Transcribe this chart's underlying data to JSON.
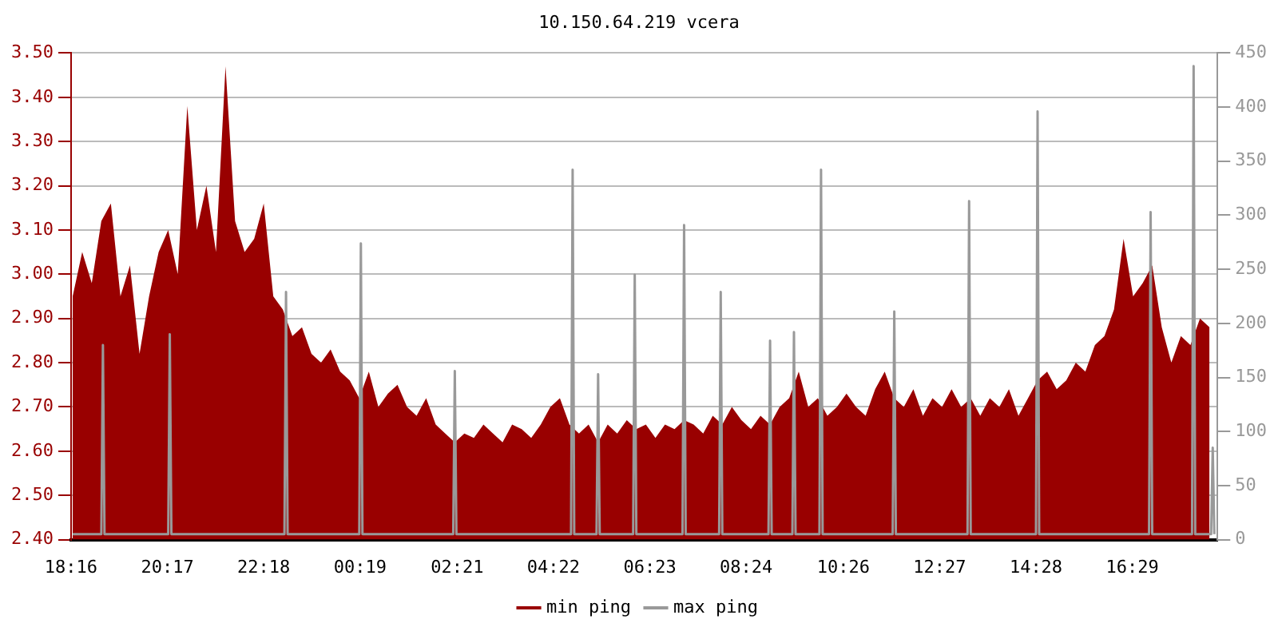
{
  "chart_data": {
    "type": "area",
    "title": "10.150.64.219 vcera",
    "xlim": [
      "--01-01T18:16",
      "--01-02T18:16"
    ],
    "xticks": [
      {
        "value": "--01-01T18:16",
        "label": "18:16"
      },
      {
        "value": "--01-01T20:17",
        "label": "20:17"
      },
      {
        "value": "--01-01T22:18",
        "label": "22:18"
      },
      {
        "value": "--01-02T00:19",
        "label": "00:19"
      },
      {
        "value": "--01-02T02:21",
        "label": "02:21"
      },
      {
        "value": "--01-02T04:22",
        "label": "04:22"
      },
      {
        "value": "--01-02T06:23",
        "label": "06:23"
      },
      {
        "value": "--01-02T08:24",
        "label": "08:24"
      },
      {
        "value": "--01-02T10:26",
        "label": "10:26"
      },
      {
        "value": "--01-02T12:27",
        "label": "12:27"
      },
      {
        "value": "--01-02T14:28",
        "label": "14:28"
      },
      {
        "value": "--01-02T16:29",
        "label": "16:29"
      }
    ],
    "ylim": [
      2.4,
      3.5
    ],
    "yticks": [
      {
        "value": 2.4,
        "label": "2.40"
      },
      {
        "value": 2.5,
        "label": "2.50"
      },
      {
        "value": 2.6,
        "label": "2.60"
      },
      {
        "value": 2.7,
        "label": "2.70"
      },
      {
        "value": 2.8,
        "label": "2.80"
      },
      {
        "value": 2.9,
        "label": "2.90"
      },
      {
        "value": 3.0,
        "label": "3.00"
      },
      {
        "value": 3.1,
        "label": "3.10"
      },
      {
        "value": 3.2,
        "label": "3.20"
      },
      {
        "value": 3.3,
        "label": "3.30"
      },
      {
        "value": 3.4,
        "label": "3.40"
      },
      {
        "value": 3.5,
        "label": "3.50"
      }
    ],
    "y2lim": [
      0,
      450
    ],
    "y2ticks": [
      0,
      50,
      100,
      150,
      200,
      250,
      300,
      350,
      400,
      450
    ],
    "grid": "y",
    "legend": "bottom",
    "marker": "none",
    "series": [
      {
        "name": "min ping",
        "color": "#990000",
        "x": [
          "--01-01T18:18",
          "--01-01T18:30",
          "--01-01T18:42",
          "--01-01T18:54",
          "--01-01T19:06",
          "--01-01T19:18",
          "--01-01T19:30",
          "--01-01T19:42",
          "--01-01T19:54",
          "--01-01T20:06",
          "--01-01T20:18",
          "--01-01T20:30",
          "--01-01T20:42",
          "--01-01T20:54",
          "--01-01T21:06",
          "--01-01T21:18",
          "--01-01T21:30",
          "--01-01T21:42",
          "--01-01T21:54",
          "--01-01T22:06",
          "--01-01T22:18",
          "--01-01T22:30",
          "--01-01T22:42",
          "--01-01T22:54",
          "--01-01T23:06",
          "--01-01T23:18",
          "--01-01T23:30",
          "--01-01T23:42",
          "--01-01T23:54",
          "--01-02T00:06",
          "--01-02T00:18",
          "--01-02T00:30",
          "--01-02T00:42",
          "--01-02T00:54",
          "--01-02T01:06",
          "--01-02T01:18",
          "--01-02T01:30",
          "--01-02T01:42",
          "--01-02T01:54",
          "--01-02T02:06",
          "--01-02T02:18",
          "--01-02T02:30",
          "--01-02T02:42",
          "--01-02T02:54",
          "--01-02T03:06",
          "--01-02T03:18",
          "--01-02T03:30",
          "--01-02T03:42",
          "--01-02T03:54",
          "--01-02T04:06",
          "--01-02T04:18",
          "--01-02T04:30",
          "--01-02T04:42",
          "--01-02T04:54",
          "--01-02T05:06",
          "--01-02T05:18",
          "--01-02T05:30",
          "--01-02T05:42",
          "--01-02T05:54",
          "--01-02T06:06",
          "--01-02T06:18",
          "--01-02T06:30",
          "--01-02T06:42",
          "--01-02T06:54",
          "--01-02T07:06",
          "--01-02T07:18",
          "--01-02T07:30",
          "--01-02T07:42",
          "--01-02T07:54",
          "--01-02T08:06",
          "--01-02T08:18",
          "--01-02T08:30",
          "--01-02T08:42",
          "--01-02T08:54",
          "--01-02T09:06",
          "--01-02T09:18",
          "--01-02T09:30",
          "--01-02T09:42",
          "--01-02T09:54",
          "--01-02T10:06",
          "--01-02T10:18",
          "--01-02T10:30",
          "--01-02T10:42",
          "--01-02T10:54",
          "--01-02T11:06",
          "--01-02T11:18",
          "--01-02T11:30",
          "--01-02T11:42",
          "--01-02T11:54",
          "--01-02T12:06",
          "--01-02T12:18",
          "--01-02T12:30",
          "--01-02T12:42",
          "--01-02T12:54",
          "--01-02T13:06",
          "--01-02T13:18",
          "--01-02T13:30",
          "--01-02T13:42",
          "--01-02T13:54",
          "--01-02T14:06",
          "--01-02T14:18",
          "--01-02T14:30",
          "--01-02T14:42",
          "--01-02T14:54",
          "--01-02T15:06",
          "--01-02T15:18",
          "--01-02T15:30",
          "--01-02T15:42",
          "--01-02T15:54",
          "--01-02T16:06",
          "--01-02T16:18",
          "--01-02T16:30",
          "--01-02T16:42",
          "--01-02T16:54",
          "--01-02T17:06",
          "--01-02T17:18",
          "--01-02T17:30",
          "--01-02T17:42",
          "--01-02T17:54",
          "--01-02T18:06"
        ],
        "values": [
          2.95,
          3.05,
          2.98,
          3.12,
          3.16,
          2.95,
          3.02,
          2.82,
          2.95,
          3.05,
          3.1,
          3.0,
          3.38,
          3.1,
          3.2,
          3.05,
          3.47,
          3.12,
          3.05,
          3.08,
          3.16,
          2.95,
          2.92,
          2.86,
          2.88,
          2.82,
          2.8,
          2.83,
          2.78,
          2.76,
          2.72,
          2.78,
          2.7,
          2.73,
          2.75,
          2.7,
          2.68,
          2.72,
          2.66,
          2.64,
          2.62,
          2.64,
          2.63,
          2.66,
          2.64,
          2.62,
          2.66,
          2.65,
          2.63,
          2.66,
          2.7,
          2.72,
          2.66,
          2.64,
          2.66,
          2.62,
          2.66,
          2.64,
          2.67,
          2.65,
          2.66,
          2.63,
          2.66,
          2.65,
          2.67,
          2.66,
          2.64,
          2.68,
          2.66,
          2.7,
          2.67,
          2.65,
          2.68,
          2.66,
          2.7,
          2.72,
          2.78,
          2.7,
          2.72,
          2.68,
          2.7,
          2.73,
          2.7,
          2.68,
          2.74,
          2.78,
          2.72,
          2.7,
          2.74,
          2.68,
          2.72,
          2.7,
          2.74,
          2.7,
          2.72,
          2.68,
          2.72,
          2.7,
          2.74,
          2.68,
          2.72,
          2.76,
          2.78,
          2.74,
          2.76,
          2.8,
          2.78,
          2.84,
          2.86,
          2.92,
          3.08,
          2.95,
          2.98,
          3.02,
          2.88,
          2.8,
          2.86,
          2.84,
          2.9,
          2.88
        ]
      },
      {
        "name": "max ping",
        "type": "line",
        "axis": "y2",
        "color": "#999999",
        "x": [
          "--01-01T18:18",
          "--01-01T18:54",
          "--01-01T18:56",
          "--01-01T18:58",
          "--01-01T19:30",
          "--01-01T20:18",
          "--01-01T20:20",
          "--01-01T20:22",
          "--01-01T21:30",
          "--01-01T22:44",
          "--01-01T22:46",
          "--01-01T22:48",
          "--01-01T23:30",
          "--01-02T00:18",
          "--01-02T00:20",
          "--01-02T00:22",
          "--01-02T01:30",
          "--01-02T02:16",
          "--01-02T02:18",
          "--01-02T02:20",
          "--01-02T03:30",
          "--01-02T04:44",
          "--01-02T04:46",
          "--01-02T04:48",
          "--01-02T05:16",
          "--01-02T05:18",
          "--01-02T05:20",
          "--01-02T06:02",
          "--01-02T06:04",
          "--01-02T06:06",
          "--01-02T07:04",
          "--01-02T07:06",
          "--01-02T07:08",
          "--01-02T07:50",
          "--01-02T07:52",
          "--01-02T07:54",
          "--01-02T08:52",
          "--01-02T08:54",
          "--01-02T08:56",
          "--01-02T09:22",
          "--01-02T09:24",
          "--01-02T09:26",
          "--01-02T09:56",
          "--01-02T09:58",
          "--01-02T10:00",
          "--01-02T11:28",
          "--01-02T11:30",
          "--01-02T11:32",
          "--01-02T13:02",
          "--01-02T13:04",
          "--01-02T13:06",
          "--01-02T14:28",
          "--01-02T14:30",
          "--01-02T14:32",
          "--01-02T16:50",
          "--01-02T16:52",
          "--01-02T16:54",
          "--01-02T17:44",
          "--01-02T17:46",
          "--01-02T17:48",
          "--01-02T18:08",
          "--01-02T18:10",
          "--01-02T18:12"
        ],
        "values": [
          5,
          5,
          180,
          5,
          5,
          5,
          190,
          5,
          5,
          5,
          229,
          5,
          5,
          5,
          274,
          5,
          5,
          5,
          156,
          5,
          5,
          5,
          342,
          5,
          5,
          153,
          5,
          5,
          245,
          5,
          5,
          291,
          5,
          5,
          229,
          5,
          5,
          184,
          5,
          5,
          192,
          5,
          5,
          342,
          5,
          5,
          211,
          5,
          5,
          313,
          5,
          5,
          396,
          5,
          5,
          303,
          5,
          5,
          438,
          5,
          5,
          85,
          5
        ]
      }
    ]
  }
}
